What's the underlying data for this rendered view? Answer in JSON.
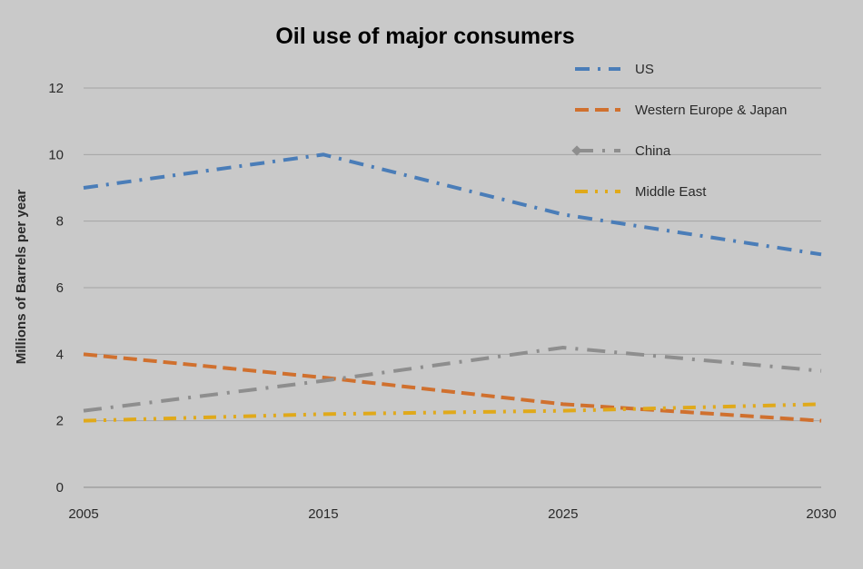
{
  "chart_data": {
    "type": "line",
    "title": "Oil use of major consumers",
    "xlabel": "",
    "ylabel": "Millions of Barrels per year",
    "x": [
      2005,
      2015,
      2025,
      2030
    ],
    "x_tick_labels": [
      "2005",
      "2015",
      "2025",
      "2030"
    ],
    "y_ticks": [
      0,
      2,
      4,
      6,
      8,
      10,
      12
    ],
    "y_tick_labels": [
      "0",
      "2",
      "4",
      "6",
      "8",
      "10",
      "12"
    ],
    "ylim": [
      0,
      12
    ],
    "grid": true,
    "legend_position": "top-right",
    "series": [
      {
        "name": "US",
        "values": [
          9.0,
          10.0,
          8.2,
          7.0
        ],
        "color": "#4a7db8",
        "dash": "dash-dot"
      },
      {
        "name": "Western Europe & Japan",
        "values": [
          4.0,
          3.3,
          2.5,
          2.0
        ],
        "color": "#d0702e",
        "dash": "dash"
      },
      {
        "name": "China",
        "values": [
          2.3,
          3.2,
          4.2,
          3.5
        ],
        "color": "#8e8e8e",
        "dash": "long-dash-dot"
      },
      {
        "name": "Middle East",
        "values": [
          2.0,
          2.2,
          2.3,
          2.5
        ],
        "color": "#e0a91a",
        "dash": "dash-dot-dot"
      }
    ]
  }
}
